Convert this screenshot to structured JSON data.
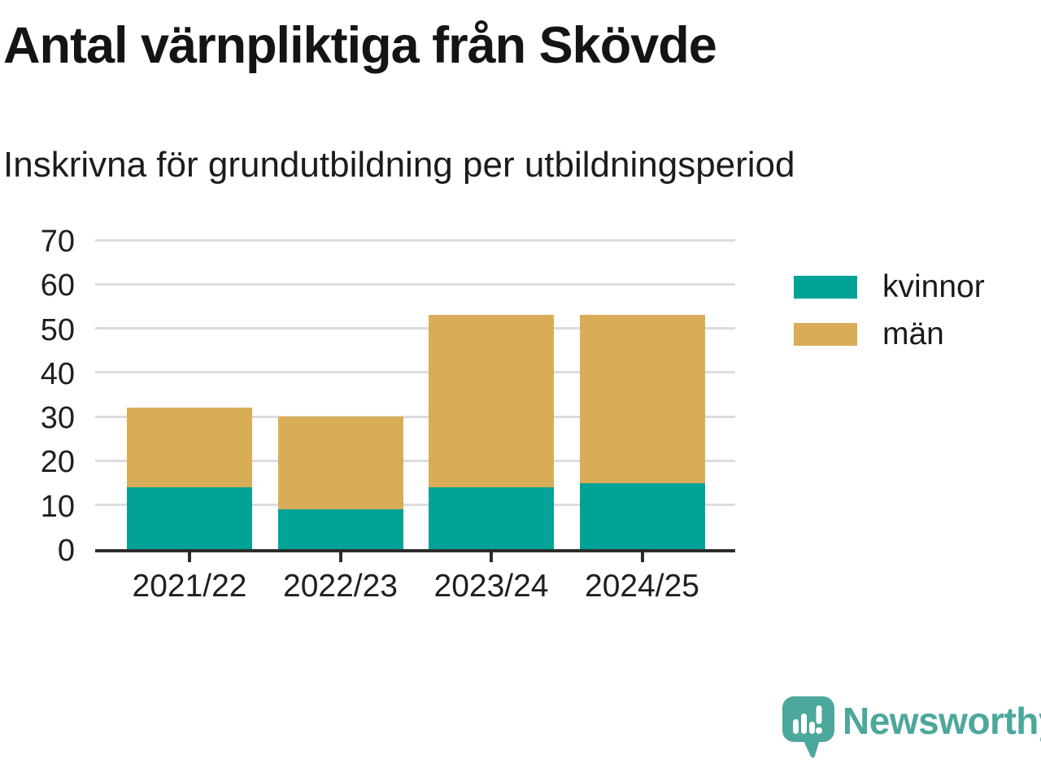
{
  "title": "Antal värnpliktiga från Skövde",
  "subtitle": "Inskrivna för grundutbildning per utbildningsperiod",
  "chart_data": {
    "type": "bar",
    "stacked": true,
    "title": "Antal värnpliktiga från Skövde",
    "subtitle": "Inskrivna för grundutbildning per utbildningsperiod",
    "categories": [
      "2021/22",
      "2022/23",
      "2023/24",
      "2024/25"
    ],
    "series": [
      {
        "name": "kvinnor",
        "color": "#00a396",
        "values": [
          14,
          9,
          14,
          15
        ]
      },
      {
        "name": "män",
        "color": "#d9ac58",
        "values": [
          18,
          21,
          39,
          38
        ]
      }
    ],
    "stack_totals": [
      32,
      30,
      53,
      53
    ],
    "xlabel": "",
    "ylabel": "",
    "ylim": [
      0,
      70
    ],
    "yticks": [
      0,
      10,
      20,
      30,
      40,
      50,
      60,
      70
    ],
    "grid": true,
    "gridline_color": "#dcdcdc",
    "axis_color": "#2d2d2d",
    "legend_position": "right"
  },
  "branding": {
    "name": "Newsworthy",
    "color": "#4ca79c"
  }
}
